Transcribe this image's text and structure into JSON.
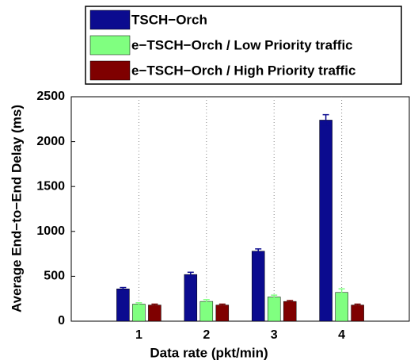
{
  "chart_data": {
    "type": "bar",
    "ylabel": "Average End−to−End Delay (ms)",
    "xlabel": "Data rate (pkt/min)",
    "categories": [
      "1",
      "2",
      "3",
      "4"
    ],
    "series": [
      {
        "name": "TSCH−Orch",
        "color": "#0b0b8f",
        "values": [
          360,
          520,
          780,
          2240
        ],
        "errors": [
          15,
          25,
          25,
          60
        ]
      },
      {
        "name": "e−TSCH−Orch / Low Priority traffic",
        "color": "#80ff80",
        "values": [
          190,
          220,
          270,
          320
        ],
        "errors": [
          15,
          20,
          20,
          40
        ]
      },
      {
        "name": "e−TSCH−Orch / High Priority traffic",
        "color": "#7f0000",
        "values": [
          180,
          180,
          220,
          180
        ],
        "errors": [
          10,
          10,
          10,
          10
        ]
      }
    ],
    "ylim": [
      0,
      2500
    ],
    "yticks": [
      0,
      500,
      1000,
      1500,
      2000,
      2500
    ],
    "grid": "x",
    "legend": "top"
  }
}
